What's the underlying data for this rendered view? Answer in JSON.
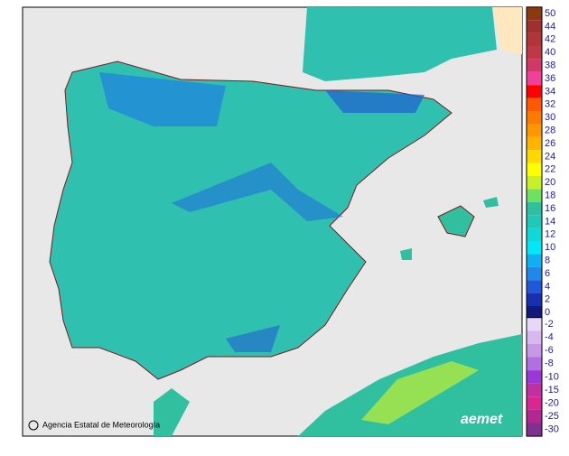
{
  "map": {
    "credit": "Agencia Estatal de Meteorología",
    "logo": "aemet",
    "legend": {
      "positive": [
        {
          "value": 50,
          "color": "#8b3a10"
        },
        {
          "value": 44,
          "color": "#a03030"
        },
        {
          "value": 42,
          "color": "#b03438"
        },
        {
          "value": 40,
          "color": "#c03848"
        },
        {
          "value": 38,
          "color": "#d03868"
        },
        {
          "value": 36,
          "color": "#f0409a"
        },
        {
          "value": 34,
          "color": "#ff0000"
        },
        {
          "value": 32,
          "color": "#ff5a00"
        },
        {
          "value": 30,
          "color": "#ff7a00"
        },
        {
          "value": 28,
          "color": "#ff9800"
        },
        {
          "value": 26,
          "color": "#ffb400"
        },
        {
          "value": 24,
          "color": "#ffd800"
        },
        {
          "value": 22,
          "color": "#ffff00"
        },
        {
          "value": 20,
          "color": "#c8f028"
        },
        {
          "value": 18,
          "color": "#70e060"
        },
        {
          "value": 16,
          "color": "#30c0a0"
        },
        {
          "value": 14,
          "color": "#20c8b8"
        },
        {
          "value": 12,
          "color": "#10d8d8"
        },
        {
          "value": 10,
          "color": "#00e8f8"
        },
        {
          "value": 8,
          "color": "#10b0f0"
        },
        {
          "value": 6,
          "color": "#2088e8"
        },
        {
          "value": 4,
          "color": "#2058d8"
        },
        {
          "value": 2,
          "color": "#1830b0"
        },
        {
          "value": 0,
          "color": "#101878"
        }
      ],
      "negative": [
        {
          "value": -2,
          "color": "#e8d8f8"
        },
        {
          "value": -4,
          "color": "#d8b8f0"
        },
        {
          "value": -6,
          "color": "#c898e8"
        },
        {
          "value": -8,
          "color": "#b070e0"
        },
        {
          "value": -10,
          "color": "#9838d8"
        },
        {
          "value": -15,
          "color": "#c030a0"
        },
        {
          "value": -20,
          "color": "#d82890"
        },
        {
          "value": -25,
          "color": "#b02890"
        },
        {
          "value": -30,
          "color": "#803090"
        }
      ]
    }
  }
}
